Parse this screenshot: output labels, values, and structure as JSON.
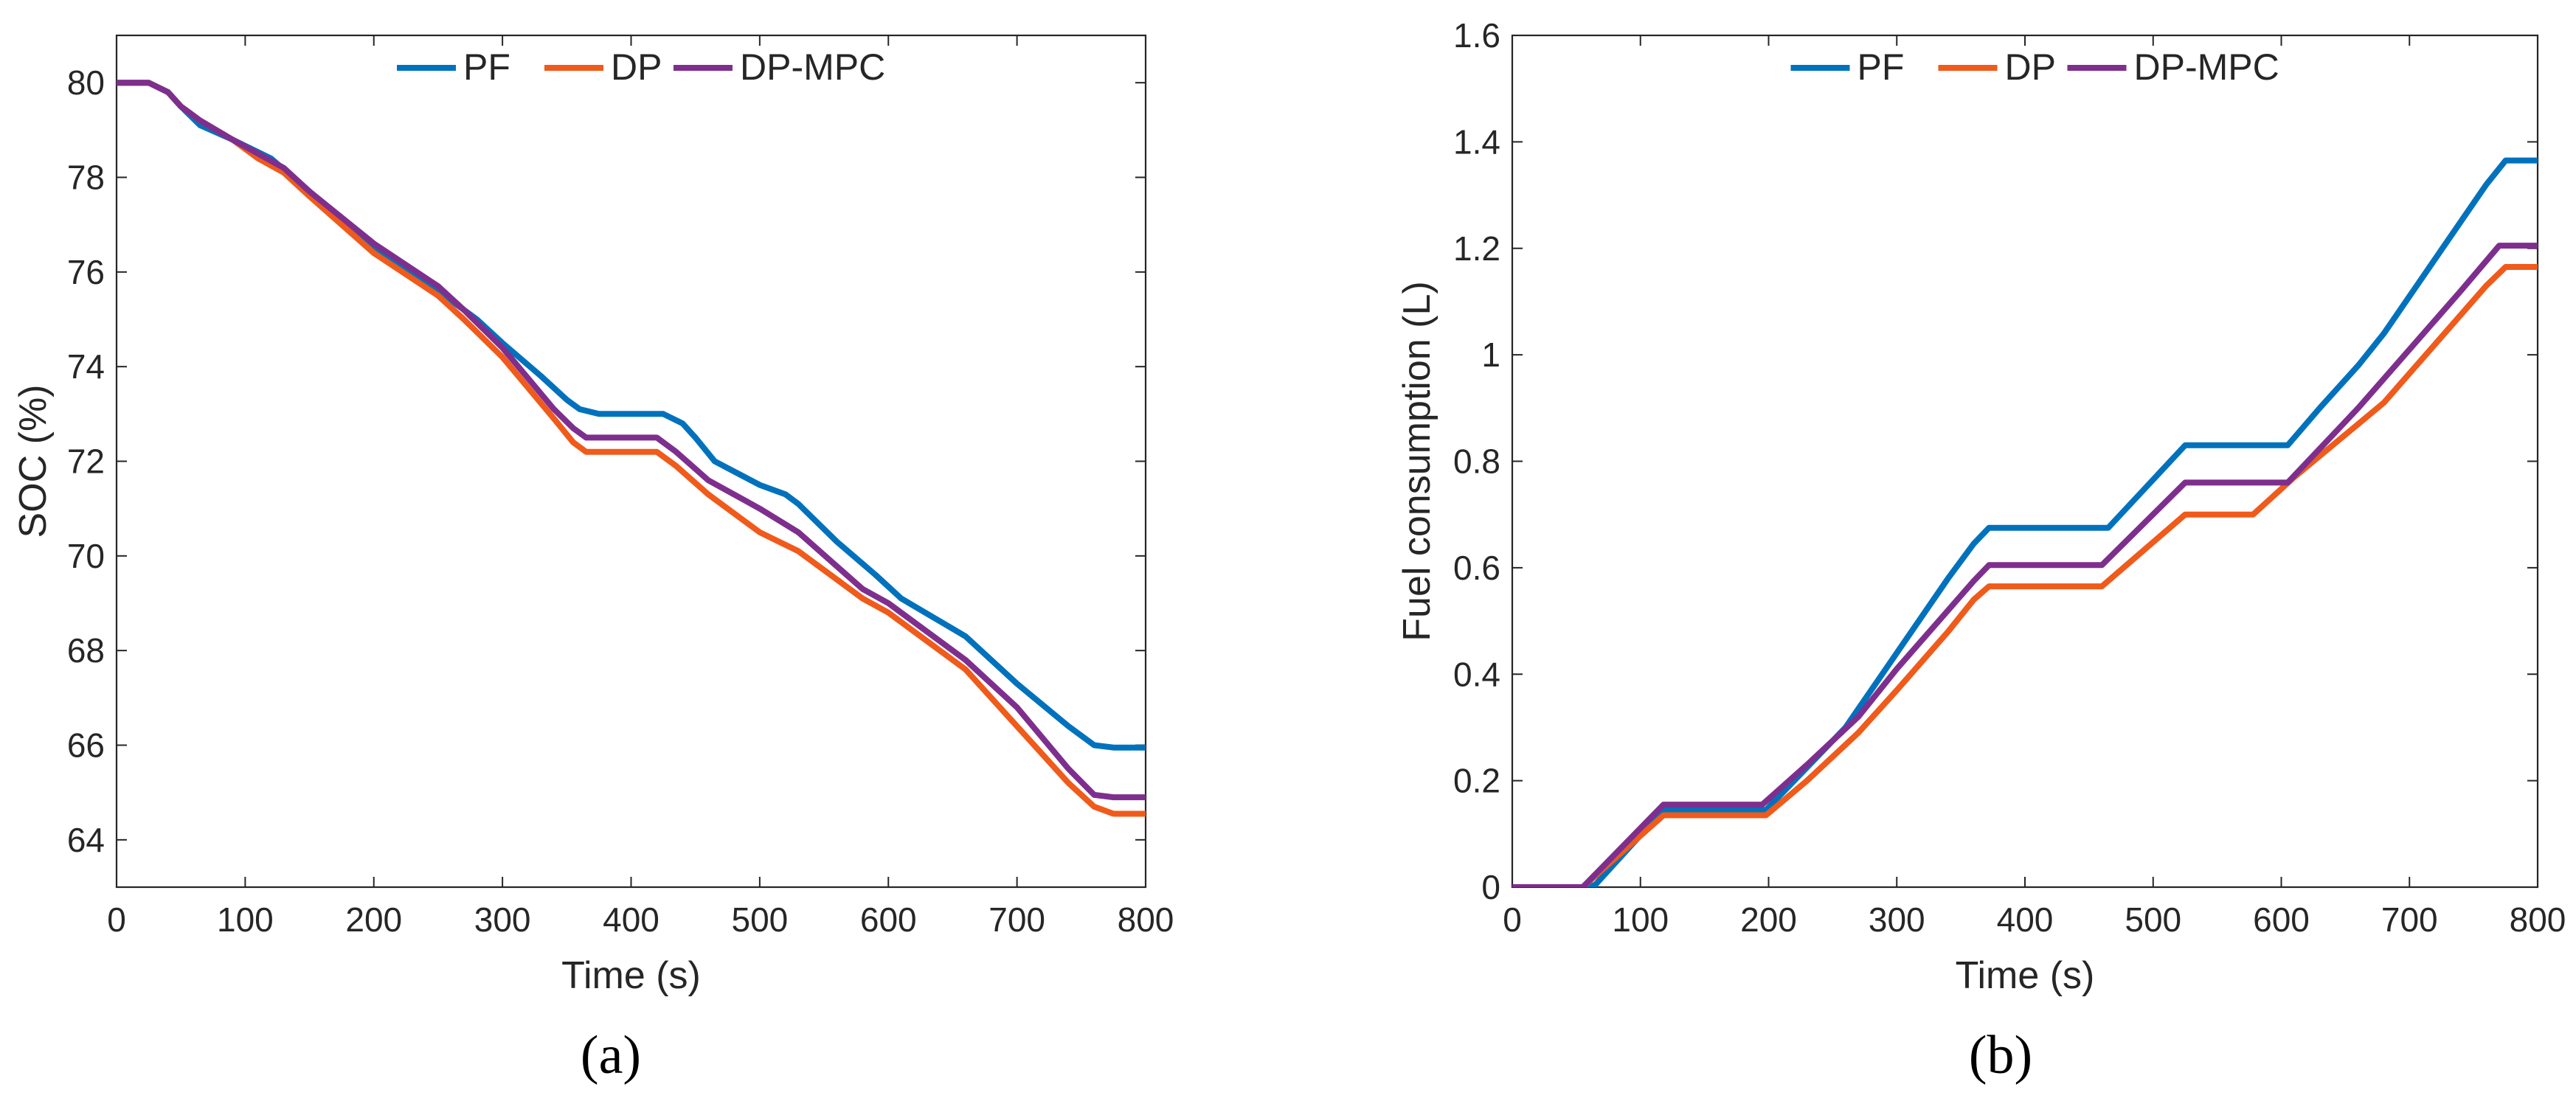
{
  "figure": {
    "panel_labels": [
      "(a)",
      "(b)"
    ],
    "colors": {
      "PF": "#0072BD",
      "DP": "#F05A1A",
      "DP-MPC": "#7E2F8E",
      "axis": "#262626"
    }
  },
  "chart_data": [
    {
      "type": "line",
      "panel": "(a)",
      "title": "",
      "xlabel": "Time  (s)",
      "ylabel": "SOC (%)",
      "xlim": [
        0,
        800
      ],
      "ylim": [
        63,
        81
      ],
      "xticks": [
        0,
        100,
        200,
        300,
        400,
        500,
        600,
        700,
        800
      ],
      "yticks": [
        64,
        66,
        68,
        70,
        72,
        74,
        76,
        78,
        80
      ],
      "legend": [
        "PF",
        "DP",
        "DP-MPC"
      ],
      "legend_location": "top-center",
      "series": [
        {
          "name": "PF",
          "x": [
            0,
            25,
            40,
            50,
            65,
            90,
            120,
            150,
            200,
            250,
            280,
            300,
            330,
            350,
            360,
            375,
            400,
            425,
            440,
            450,
            465,
            500,
            520,
            530,
            560,
            590,
            610,
            660,
            700,
            740,
            760,
            775,
            800
          ],
          "y": [
            80,
            80,
            79.8,
            79.5,
            79.1,
            78.8,
            78.4,
            77.7,
            76.5,
            75.6,
            75.0,
            74.5,
            73.8,
            73.3,
            73.1,
            73.0,
            73.0,
            73.0,
            72.8,
            72.5,
            72.0,
            71.5,
            71.3,
            71.1,
            70.3,
            69.6,
            69.1,
            68.3,
            67.3,
            66.4,
            66.0,
            65.95,
            65.95
          ]
        },
        {
          "name": "DP",
          "x": [
            0,
            25,
            40,
            50,
            65,
            90,
            110,
            130,
            150,
            200,
            250,
            270,
            300,
            340,
            355,
            365,
            380,
            420,
            435,
            460,
            500,
            530,
            580,
            600,
            660,
            700,
            740,
            760,
            775,
            800
          ],
          "y": [
            80,
            80,
            79.8,
            79.5,
            79.2,
            78.8,
            78.4,
            78.1,
            77.6,
            76.4,
            75.5,
            75.0,
            74.2,
            72.9,
            72.4,
            72.2,
            72.2,
            72.2,
            71.9,
            71.3,
            70.5,
            70.1,
            69.1,
            68.8,
            67.6,
            66.4,
            65.2,
            64.7,
            64.55,
            64.55
          ]
        },
        {
          "name": "DP-MPC",
          "x": [
            0,
            25,
            40,
            50,
            65,
            90,
            110,
            130,
            150,
            200,
            250,
            270,
            300,
            340,
            355,
            365,
            380,
            420,
            435,
            460,
            500,
            530,
            580,
            600,
            660,
            700,
            740,
            760,
            775,
            800
          ],
          "y": [
            80,
            80,
            79.8,
            79.5,
            79.2,
            78.8,
            78.5,
            78.2,
            77.7,
            76.6,
            75.7,
            75.2,
            74.4,
            73.1,
            72.7,
            72.5,
            72.5,
            72.5,
            72.2,
            71.6,
            71.0,
            70.5,
            69.3,
            69.0,
            67.8,
            66.8,
            65.5,
            64.95,
            64.9,
            64.9
          ]
        }
      ]
    },
    {
      "type": "line",
      "panel": "(b)",
      "title": "",
      "xlabel": "Time (s)",
      "ylabel": "Fuel consumption (L)",
      "xlim": [
        0,
        800
      ],
      "ylim": [
        0,
        1.6
      ],
      "xticks": [
        0,
        100,
        200,
        300,
        400,
        500,
        600,
        700,
        800
      ],
      "yticks": [
        0,
        0.2,
        0.4,
        0.6,
        0.8,
        1,
        1.2,
        1.4,
        1.6
      ],
      "ytick_labels": [
        "0",
        "0.2",
        "0.4",
        "0.6",
        "0.8",
        "1",
        "1.2",
        "1.4",
        "1.6"
      ],
      "legend": [
        "PF",
        "DP",
        "DP-MPC"
      ],
      "legend_location": "top-center",
      "series": [
        {
          "name": "PF",
          "x": [
            0,
            60,
            65,
            118,
            198,
            260,
            300,
            340,
            360,
            372,
            465,
            525,
            605,
            630,
            660,
            680,
            720,
            760,
            775,
            800
          ],
          "y": [
            0,
            0,
            0.005,
            0.145,
            0.145,
            0.3,
            0.44,
            0.58,
            0.645,
            0.675,
            0.675,
            0.83,
            0.83,
            0.9,
            0.98,
            1.04,
            1.18,
            1.32,
            1.365,
            1.365
          ]
        },
        {
          "name": "DP",
          "x": [
            0,
            55,
            118,
            198,
            230,
            270,
            300,
            340,
            360,
            372,
            460,
            525,
            578,
            610,
            650,
            680,
            720,
            760,
            775,
            800
          ],
          "y": [
            0,
            0,
            0.135,
            0.135,
            0.2,
            0.29,
            0.37,
            0.48,
            0.54,
            0.565,
            0.565,
            0.7,
            0.7,
            0.77,
            0.85,
            0.91,
            1.02,
            1.13,
            1.165,
            1.165
          ]
        },
        {
          "name": "DP-MPC",
          "x": [
            0,
            55,
            118,
            195,
            230,
            270,
            300,
            340,
            360,
            372,
            460,
            525,
            605,
            660,
            700,
            740,
            770,
            800
          ],
          "y": [
            0,
            0,
            0.155,
            0.155,
            0.23,
            0.32,
            0.41,
            0.52,
            0.575,
            0.605,
            0.605,
            0.76,
            0.76,
            0.9,
            1.01,
            1.12,
            1.205,
            1.205
          ]
        }
      ]
    }
  ]
}
